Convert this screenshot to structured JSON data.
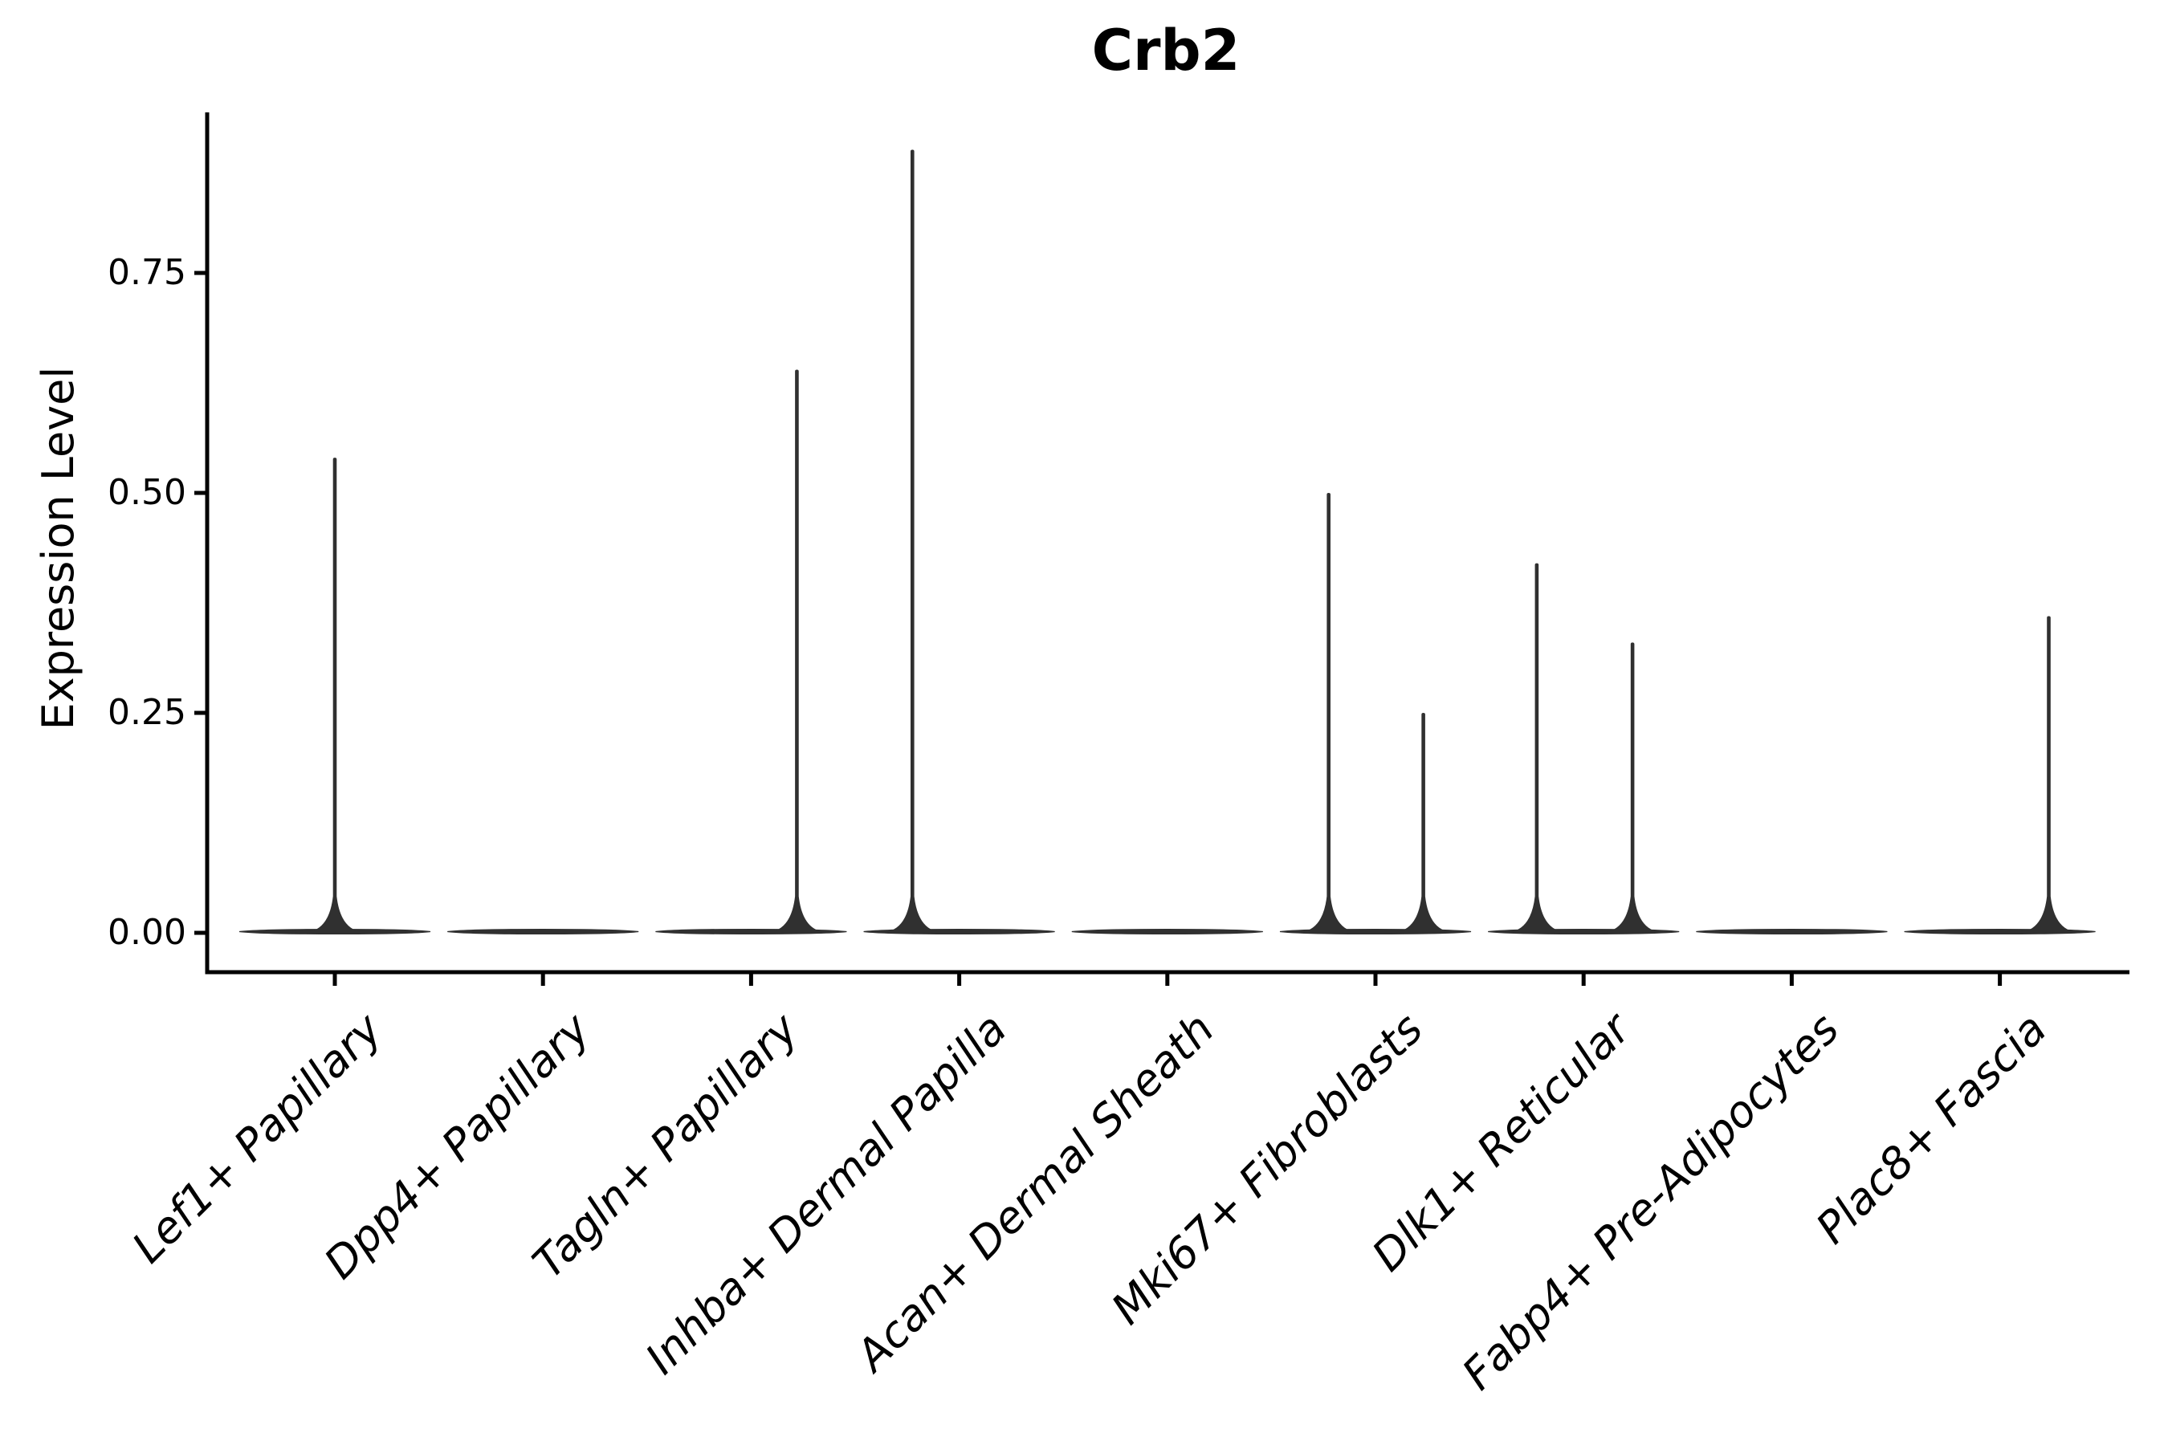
{
  "title": "Crb2",
  "axes": {
    "y_label": "Expression Level",
    "y_tick_labels": [
      "0.00",
      "0.25",
      "0.50",
      "0.75"
    ]
  },
  "chart_data": {
    "type": "violin",
    "title": "Crb2",
    "xlabel": "",
    "ylabel": "Expression Level",
    "ylim": [
      -0.043,
      0.932
    ],
    "y_ticks": [
      0.0,
      0.25,
      0.5,
      0.75
    ],
    "grid": false,
    "legend_position": "none",
    "categories": [
      "Lef1+ Papillary",
      "Dpp4+ Papillary",
      "Tagln+ Papillary",
      "Inhba+ Dermal Papilla",
      "Acan+ Dermal Sheath",
      "Mki67+ Fibroblasts",
      "Dlk1+ Reticular",
      "Fabp4+ Pre-Adipocytes",
      "Plac8+ Fascia"
    ],
    "series": [
      {
        "category": "Lef1+ Papillary",
        "body_at_zero": true,
        "spikes": [
          {
            "value": 0.54,
            "offset_frac": 0.0
          }
        ]
      },
      {
        "category": "Dpp4+ Papillary",
        "body_at_zero": true,
        "spikes": []
      },
      {
        "category": "Tagln+ Papillary",
        "body_at_zero": true,
        "spikes": [
          {
            "value": 0.64,
            "offset_frac": 0.22
          }
        ]
      },
      {
        "category": "Inhba+ Dermal Papilla",
        "body_at_zero": true,
        "spikes": [
          {
            "value": 0.89,
            "offset_frac": -0.225
          }
        ]
      },
      {
        "category": "Acan+ Dermal Sheath",
        "body_at_zero": true,
        "spikes": []
      },
      {
        "category": "Mki67+ Fibroblasts",
        "body_at_zero": true,
        "spikes": [
          {
            "value": 0.5,
            "offset_frac": -0.225
          },
          {
            "value": 0.25,
            "offset_frac": 0.23
          }
        ]
      },
      {
        "category": "Dlk1+ Reticular",
        "body_at_zero": true,
        "spikes": [
          {
            "value": 0.42,
            "offset_frac": -0.225
          },
          {
            "value": 0.33,
            "offset_frac": 0.235
          }
        ]
      },
      {
        "category": "Fabp4+ Pre-Adipocytes",
        "body_at_zero": true,
        "spikes": []
      },
      {
        "category": "Plac8+ Fascia",
        "body_at_zero": true,
        "spikes": [
          {
            "value": 0.36,
            "offset_frac": 0.235
          }
        ]
      }
    ],
    "style": {
      "violin_color": "#303030",
      "axis_color": "#000000",
      "text_color": "#000000",
      "background": "#ffffff"
    }
  }
}
